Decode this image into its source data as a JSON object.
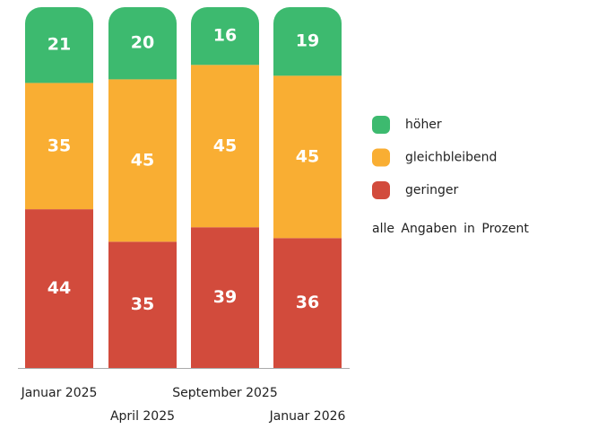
{
  "chart_data": {
    "type": "stacked_bar",
    "categories": [
      "Januar 2025",
      "April 2025",
      "September 2025",
      "Januar 2026"
    ],
    "series": [
      {
        "name": "geringer",
        "color": "#d24b3c",
        "values": [
          44,
          35,
          39,
          36
        ]
      },
      {
        "name": "gleichbleibend",
        "color": "#f9ae33",
        "values": [
          35,
          45,
          45,
          45
        ]
      },
      {
        "name": "höher",
        "color": "#3dba6f",
        "values": [
          21,
          20,
          16,
          19
        ]
      }
    ],
    "ylim": [
      0,
      100
    ],
    "note": "alle Angaben in Prozent"
  }
}
